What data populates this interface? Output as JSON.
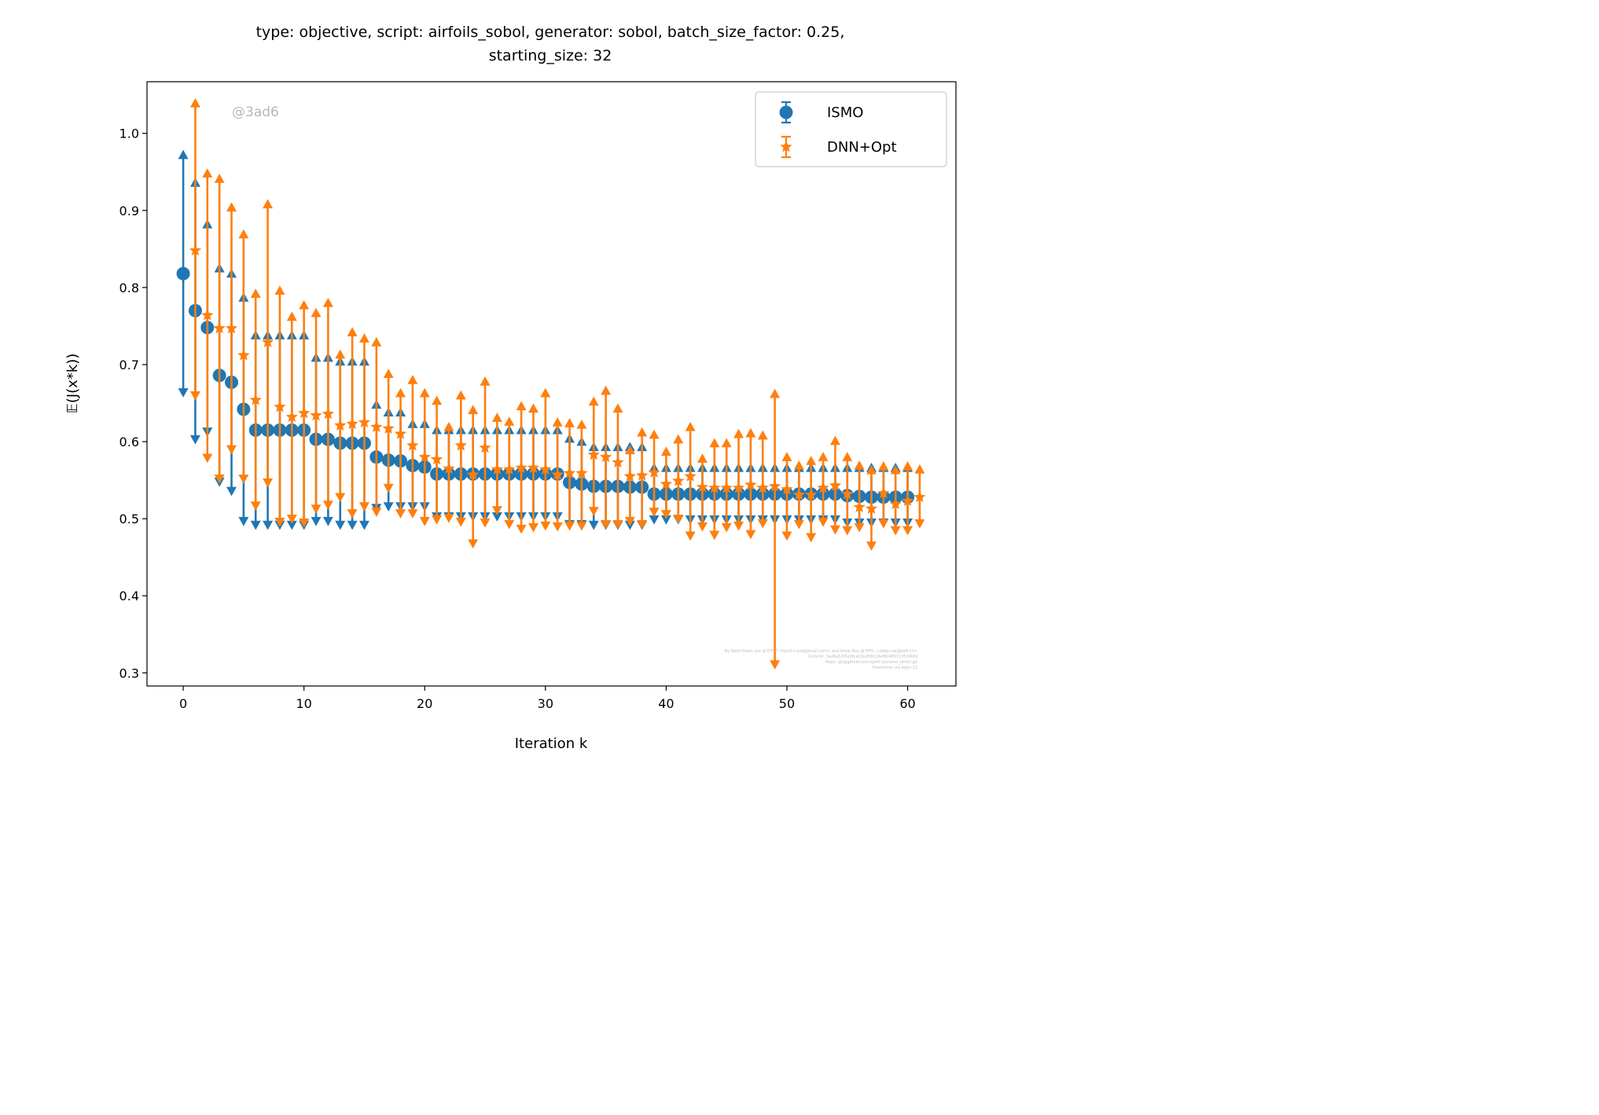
{
  "chart_data": {
    "type": "scatter",
    "title_line1": "type: objective, script: airfoils_sobol, generator: sobol, batch_size_factor: 0.25,",
    "title_line2": "starting_size: 32",
    "xlabel": "Iteration k",
    "ylabel": "𝔼(J(x*k))",
    "xlim": [
      -3,
      64
    ],
    "ylim": [
      0.283,
      1.067
    ],
    "xticks": [
      "0",
      "10",
      "20",
      "30",
      "40",
      "50",
      "60"
    ],
    "yticks": [
      "0.3",
      "0.4",
      "0.5",
      "0.6",
      "0.7",
      "0.8",
      "0.9",
      "1.0"
    ],
    "xtick_values": [
      0,
      10,
      20,
      30,
      40,
      50,
      60
    ],
    "ytick_values": [
      0.3,
      0.4,
      0.5,
      0.6,
      0.7,
      0.8,
      0.9,
      1.0
    ],
    "legend_position": "top-right",
    "watermark": "@3ad6",
    "credits": [
      "By Kjetil Olsen Lye @ ETHZ <kjetil.o.lye@gmail.com> and Deep Ray @ EPFL <deep.ray@epfl.ch>",
      "Commit: 3ad6a53f3e3fca02e268c16ef8c489113534bfd",
      "Repo: git@github.com:kjetil-lye/ismo_airfoil.git",
      "Hostname: eu-login-12"
    ],
    "series": [
      {
        "name": "ISMO",
        "color": "#1f77b4",
        "marker": "circle",
        "x": [
          0,
          1,
          2,
          3,
          4,
          5,
          6,
          7,
          8,
          9,
          10,
          11,
          12,
          13,
          14,
          15,
          16,
          17,
          18,
          19,
          20,
          21,
          22,
          23,
          24,
          25,
          26,
          27,
          28,
          29,
          30,
          31,
          32,
          33,
          34,
          35,
          36,
          37,
          38,
          39,
          40,
          41,
          42,
          43,
          44,
          45,
          46,
          47,
          48,
          49,
          50,
          51,
          52,
          53,
          54,
          55,
          56,
          57,
          58,
          59,
          60
        ],
        "y": [
          0.818,
          0.77,
          0.748,
          0.686,
          0.677,
          0.642,
          0.615,
          0.615,
          0.615,
          0.615,
          0.615,
          0.603,
          0.603,
          0.598,
          0.598,
          0.598,
          0.58,
          0.576,
          0.575,
          0.569,
          0.567,
          0.558,
          0.558,
          0.558,
          0.558,
          0.558,
          0.558,
          0.558,
          0.558,
          0.558,
          0.558,
          0.558,
          0.547,
          0.545,
          0.542,
          0.542,
          0.542,
          0.541,
          0.541,
          0.532,
          0.532,
          0.532,
          0.532,
          0.532,
          0.532,
          0.532,
          0.532,
          0.532,
          0.532,
          0.532,
          0.532,
          0.532,
          0.532,
          0.532,
          0.532,
          0.53,
          0.529,
          0.528,
          0.528,
          0.528,
          0.528
        ],
        "upper": [
          0.972,
          0.936,
          0.882,
          0.825,
          0.818,
          0.787,
          0.738,
          0.738,
          0.738,
          0.738,
          0.738,
          0.709,
          0.709,
          0.704,
          0.704,
          0.704,
          0.648,
          0.638,
          0.638,
          0.623,
          0.623,
          0.615,
          0.615,
          0.615,
          0.615,
          0.615,
          0.615,
          0.615,
          0.615,
          0.615,
          0.615,
          0.615,
          0.604,
          0.6,
          0.593,
          0.593,
          0.593,
          0.593,
          0.593,
          0.566,
          0.566,
          0.566,
          0.566,
          0.566,
          0.566,
          0.566,
          0.566,
          0.566,
          0.566,
          0.566,
          0.566,
          0.566,
          0.566,
          0.566,
          0.566,
          0.566,
          0.566,
          0.566,
          0.566,
          0.566,
          0.566
        ],
        "lower": [
          0.664,
          0.603,
          0.613,
          0.548,
          0.536,
          0.497,
          0.492,
          0.492,
          0.492,
          0.492,
          0.492,
          0.497,
          0.497,
          0.492,
          0.492,
          0.492,
          0.514,
          0.516,
          0.516,
          0.516,
          0.516,
          0.503,
          0.503,
          0.503,
          0.503,
          0.503,
          0.503,
          0.503,
          0.503,
          0.503,
          0.503,
          0.503,
          0.493,
          0.493,
          0.492,
          0.492,
          0.492,
          0.492,
          0.492,
          0.499,
          0.499,
          0.499,
          0.499,
          0.499,
          0.499,
          0.499,
          0.499,
          0.499,
          0.499,
          0.499,
          0.499,
          0.499,
          0.499,
          0.499,
          0.499,
          0.495,
          0.495,
          0.495,
          0.495,
          0.495,
          0.495
        ]
      },
      {
        "name": "DNN+Opt",
        "color": "#ff7f0e",
        "marker": "star",
        "x": [
          1,
          2,
          3,
          4,
          5,
          6,
          7,
          8,
          9,
          10,
          11,
          12,
          13,
          14,
          15,
          16,
          17,
          18,
          19,
          20,
          21,
          22,
          23,
          24,
          25,
          26,
          27,
          28,
          29,
          30,
          31,
          32,
          33,
          34,
          35,
          36,
          37,
          38,
          39,
          40,
          41,
          42,
          43,
          44,
          45,
          46,
          47,
          48,
          49,
          50,
          51,
          52,
          53,
          54,
          55,
          56,
          57,
          58,
          59,
          60,
          61
        ],
        "y": [
          0.848,
          0.764,
          0.747,
          0.747,
          0.712,
          0.654,
          0.729,
          0.645,
          0.632,
          0.637,
          0.634,
          0.636,
          0.621,
          0.623,
          0.625,
          0.619,
          0.617,
          0.61,
          0.595,
          0.58,
          0.577,
          0.565,
          0.595,
          0.557,
          0.592,
          0.564,
          0.564,
          0.566,
          0.566,
          0.564,
          0.557,
          0.559,
          0.559,
          0.583,
          0.58,
          0.573,
          0.555,
          0.556,
          0.56,
          0.545,
          0.549,
          0.555,
          0.541,
          0.54,
          0.54,
          0.54,
          0.544,
          0.54,
          0.542,
          0.538,
          0.531,
          0.531,
          0.54,
          0.543,
          0.532,
          0.515,
          0.513,
          0.533,
          0.519,
          0.523,
          0.528
        ],
        "upper": [
          1.039,
          0.948,
          0.941,
          0.904,
          0.869,
          0.792,
          0.908,
          0.796,
          0.762,
          0.777,
          0.767,
          0.78,
          0.713,
          0.742,
          0.734,
          0.729,
          0.688,
          0.663,
          0.68,
          0.663,
          0.653,
          0.619,
          0.66,
          0.641,
          0.678,
          0.631,
          0.626,
          0.646,
          0.643,
          0.663,
          0.625,
          0.624,
          0.622,
          0.652,
          0.666,
          0.643,
          0.589,
          0.612,
          0.609,
          0.587,
          0.603,
          0.619,
          0.578,
          0.598,
          0.598,
          0.61,
          0.611,
          0.608,
          0.662,
          0.58,
          0.569,
          0.575,
          0.58,
          0.601,
          0.58,
          0.569,
          0.563,
          0.568,
          0.563,
          0.568,
          0.564
        ],
        "lower": [
          0.66,
          0.579,
          0.552,
          0.59,
          0.552,
          0.517,
          0.547,
          0.496,
          0.5,
          0.495,
          0.513,
          0.518,
          0.528,
          0.507,
          0.516,
          0.509,
          0.54,
          0.507,
          0.507,
          0.497,
          0.499,
          0.501,
          0.496,
          0.468,
          0.495,
          0.511,
          0.493,
          0.487,
          0.489,
          0.491,
          0.49,
          0.491,
          0.491,
          0.51,
          0.493,
          0.493,
          0.497,
          0.493,
          0.509,
          0.506,
          0.5,
          0.478,
          0.49,
          0.479,
          0.489,
          0.491,
          0.48,
          0.494,
          0.311,
          0.478,
          0.493,
          0.476,
          0.496,
          0.486,
          0.485,
          0.489,
          0.465,
          0.494,
          0.485,
          0.485,
          0.494
        ]
      }
    ]
  }
}
